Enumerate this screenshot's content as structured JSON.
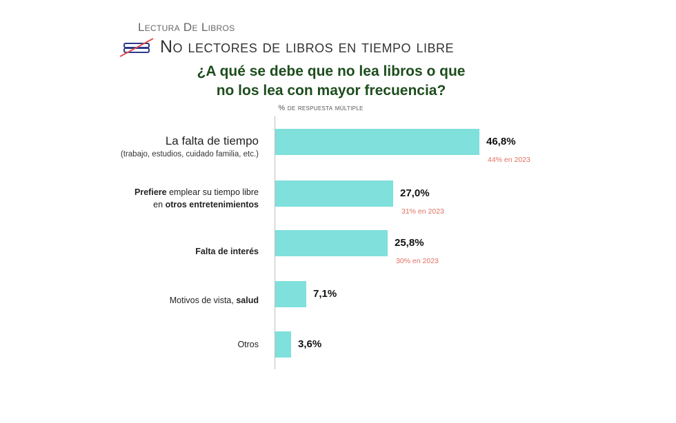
{
  "header": {
    "kicker": "Lectura De Libros",
    "subtitle": "No lectores de libros en tiempo libre",
    "question_line1": "¿A qué se debe que no lea libros o que",
    "question_line2": "no los lea con mayor frecuencia?",
    "unit_note": "% de respuesta múltiple",
    "icon": "book-icon",
    "question_color": "#1d4d1d"
  },
  "labels": {
    "r1_main": "La falta de tiempo",
    "r1_note": "(trabajo, estudios, cuidado familia, etc.)",
    "r2_bold1": "Prefiere",
    "r2_text1": " emplear su tiempo libre",
    "r2_text2": "en ",
    "r2_bold2": "otros entretenimientos",
    "r3_bold": "Falta de interés",
    "r4_text": "Motivos de vista, ",
    "r4_bold": "salud",
    "r5_text": "Otros"
  },
  "chart_data": {
    "type": "bar",
    "orientation": "horizontal",
    "categories": [
      "La falta de tiempo (trabajo, estudios, cuidado familia, etc.)",
      "Prefiere emplear su tiempo libre en otros entretenimientos",
      "Falta de interés",
      "Motivos de vista, salud",
      "Otros"
    ],
    "values": [
      46.8,
      27.0,
      25.8,
      7.1,
      3.6
    ],
    "value_labels": [
      "46,8%",
      "27,0%",
      "25,8%",
      "7,1%",
      "3,6%"
    ],
    "previous_labels": [
      "44% en 2023",
      "31% en 2023",
      "30% en 2023",
      "",
      ""
    ],
    "bar_color": "#7fe0dc",
    "previous_color": "#e07060",
    "xlim": [
      0,
      100
    ],
    "grid": false,
    "legend": "none"
  }
}
